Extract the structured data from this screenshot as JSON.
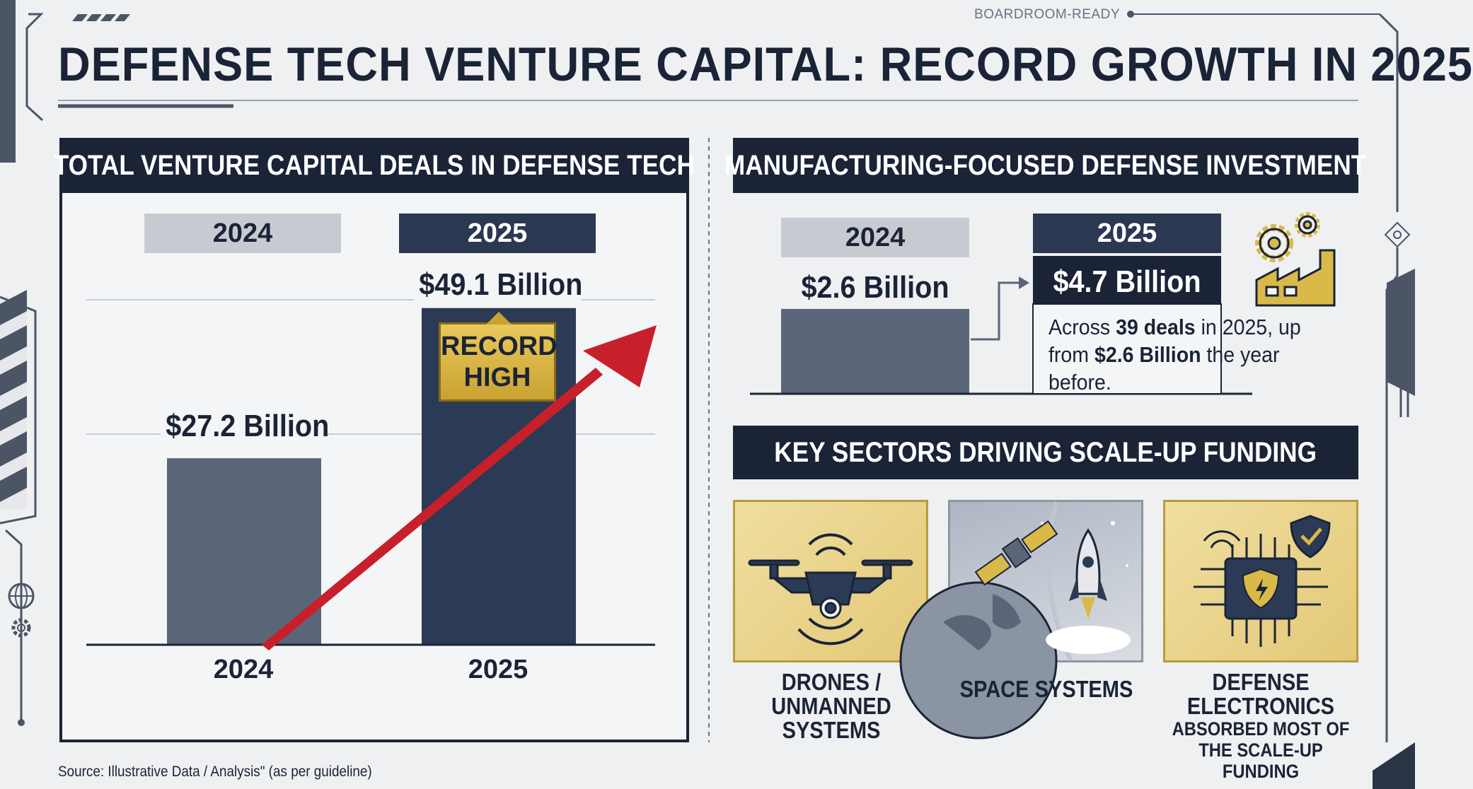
{
  "header": {
    "brand_tag": "BOARDROOM-READY",
    "title": "DEFENSE TECH VENTURE CAPITAL: RECORD GROWTH IN 2025"
  },
  "left_panel": {
    "header": "TOTAL VENTURE CAPITAL DEALS IN DEFENSE TECH",
    "tab_2024": "2024",
    "tab_2025": "2025",
    "badge_line1": "RECORD",
    "badge_line2": "HIGH"
  },
  "right_top": {
    "header": "MANUFACTURING-FOCUSED DEFENSE INVESTMENT",
    "tab_2024": "2024",
    "tab_2025": "2025",
    "value_2024": "$2.6 Billion",
    "value_2025": "$4.7 Billion",
    "desc_prefix": "Across ",
    "desc_bold1": "39 deals",
    "desc_mid": " in 2025, up from ",
    "desc_bold2": "$2.6 Billion",
    "desc_suffix": " the year before."
  },
  "right_bottom": {
    "header": "KEY SECTORS DRIVING SCALE-UP FUNDING",
    "sectors": [
      {
        "title": "DRONES / UNMANNED SYSTEMS",
        "subtitle": "",
        "icon": "drone-icon"
      },
      {
        "title": "SPACE SYSTEMS",
        "subtitle": "",
        "icon": "satellite-rocket-icon"
      },
      {
        "title": "DEFENSE ELECTRONICS",
        "subtitle": "ABSORBED MOST OF THE SCALE-UP FUNDING",
        "icon": "chip-shield-icon"
      }
    ]
  },
  "source": "Source: Illustrative Data / Analysis\" (as per guideline)",
  "colors": {
    "navy": "#1b2436",
    "bar_2024": "#5a6678",
    "bar_2025": "#2b3a55",
    "gold": "#d9b948",
    "arrow_red": "#c8202a"
  },
  "chart_data": [
    {
      "type": "bar",
      "title": "TOTAL VENTURE CAPITAL DEALS IN DEFENSE TECH",
      "categories": [
        "2024",
        "2025"
      ],
      "values": [
        27.2,
        49.1
      ],
      "value_labels": [
        "$27.2 Billion",
        "$49.1 Billion"
      ],
      "annotation": "RECORD HIGH",
      "ylim": [
        0,
        60
      ]
    },
    {
      "type": "bar",
      "title": "MANUFACTURING-FOCUSED DEFENSE INVESTMENT",
      "categories": [
        "2024",
        "2025"
      ],
      "values": [
        2.6,
        4.7
      ],
      "value_labels": [
        "$2.6 Billion",
        "$4.7 Billion"
      ]
    }
  ]
}
